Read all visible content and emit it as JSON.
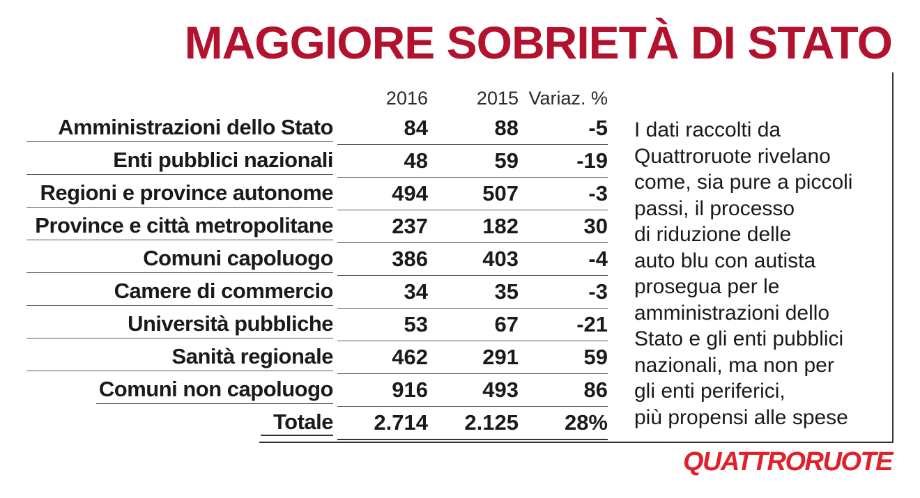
{
  "title": "MAGGIORE SOBRIETÀ DI STATO",
  "note": "I dati raccolti da\nQuattroruote rivelano\ncome, sia pure a piccoli\npassi, il processo\ndi riduzione delle\nauto blu con autista\nprosegua per le\namministrazioni dello\nStato e gli enti pubblici\nnazionali, ma non per\ngli enti periferici,\npiù propensi alle spese",
  "logo": "QUATTRORUOTE",
  "colors": {
    "title": "#b3122e",
    "logo": "#e0202a"
  },
  "chart_data": {
    "type": "table",
    "title": "MAGGIORE SOBRIETÀ DI STATO",
    "columns": [
      "2016",
      "2015",
      "Variaz. %"
    ],
    "rows": [
      {
        "label": "Amministrazioni dello Stato",
        "v2016": "84",
        "v2015": "88",
        "pct": "-5"
      },
      {
        "label": "Enti pubblici nazionali",
        "v2016": "48",
        "v2015": "59",
        "pct": "-19"
      },
      {
        "label": "Regioni e province autonome",
        "v2016": "494",
        "v2015": "507",
        "pct": "-3"
      },
      {
        "label": "Province e città metropolitane",
        "v2016": "237",
        "v2015": "182",
        "pct": "30"
      },
      {
        "label": "Comuni capoluogo",
        "v2016": "386",
        "v2015": "403",
        "pct": "-4"
      },
      {
        "label": "Camere di commercio",
        "v2016": "34",
        "v2015": "35",
        "pct": "-3"
      },
      {
        "label": "Università pubbliche",
        "v2016": "53",
        "v2015": "67",
        "pct": "-21"
      },
      {
        "label": "Sanità regionale",
        "v2016": "462",
        "v2015": "291",
        "pct": "59"
      },
      {
        "label": "Comuni non capoluogo",
        "v2016": "916",
        "v2015": "493",
        "pct": "86"
      }
    ],
    "total": {
      "label": "Totale",
      "v2016": "2.714",
      "v2015": "2.125",
      "pct": "28%"
    }
  }
}
